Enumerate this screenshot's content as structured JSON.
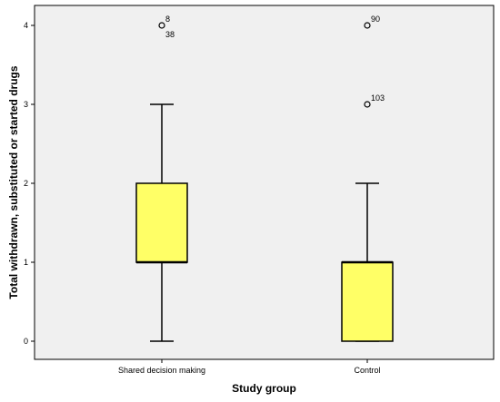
{
  "chart_data": {
    "type": "box",
    "xlabel": "Study group",
    "ylabel": "Total withdrawn, substituted or started drugs",
    "ylim": [
      -0.3,
      4.15
    ],
    "yticks": [
      "0",
      "1",
      "2",
      "3",
      "4"
    ],
    "grid": false,
    "plot_background": "#f0f0f0",
    "box_fill": "#ffff66",
    "categories": [
      "Shared decision making",
      "Control"
    ],
    "boxes": [
      {
        "category": "Shared decision making",
        "whisker_low": 0,
        "q1": 1,
        "median": 1,
        "q3": 2,
        "whisker_high": 3,
        "outliers": [
          {
            "value": 4,
            "labels": [
              "8",
              "38"
            ]
          }
        ]
      },
      {
        "category": "Control",
        "whisker_low": 0,
        "q1": 0,
        "median": 1,
        "q3": 1,
        "whisker_high": 2,
        "outliers": [
          {
            "value": 4,
            "labels": [
              "90"
            ]
          },
          {
            "value": 3,
            "labels": [
              "103"
            ]
          }
        ]
      }
    ]
  }
}
